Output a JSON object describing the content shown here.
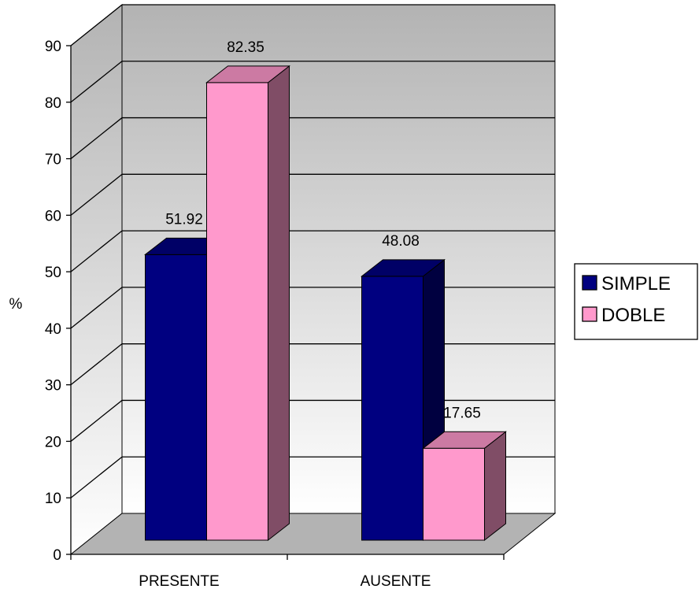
{
  "chart_data": {
    "type": "bar",
    "title": "",
    "xlabel": "",
    "ylabel": "%",
    "ylim": [
      0,
      90
    ],
    "yticks": [
      0,
      10,
      20,
      30,
      40,
      50,
      60,
      70,
      80,
      90
    ],
    "grid": true,
    "legend": "right",
    "categories": [
      "PRESENTE",
      "AUSENTE"
    ],
    "series": [
      {
        "name": "SIMPLE",
        "values": [
          51.92,
          48.08
        ],
        "color": "#000080"
      },
      {
        "name": "DOBLE",
        "values": [
          82.35,
          17.65
        ],
        "color": "#FF99CC"
      }
    ]
  }
}
